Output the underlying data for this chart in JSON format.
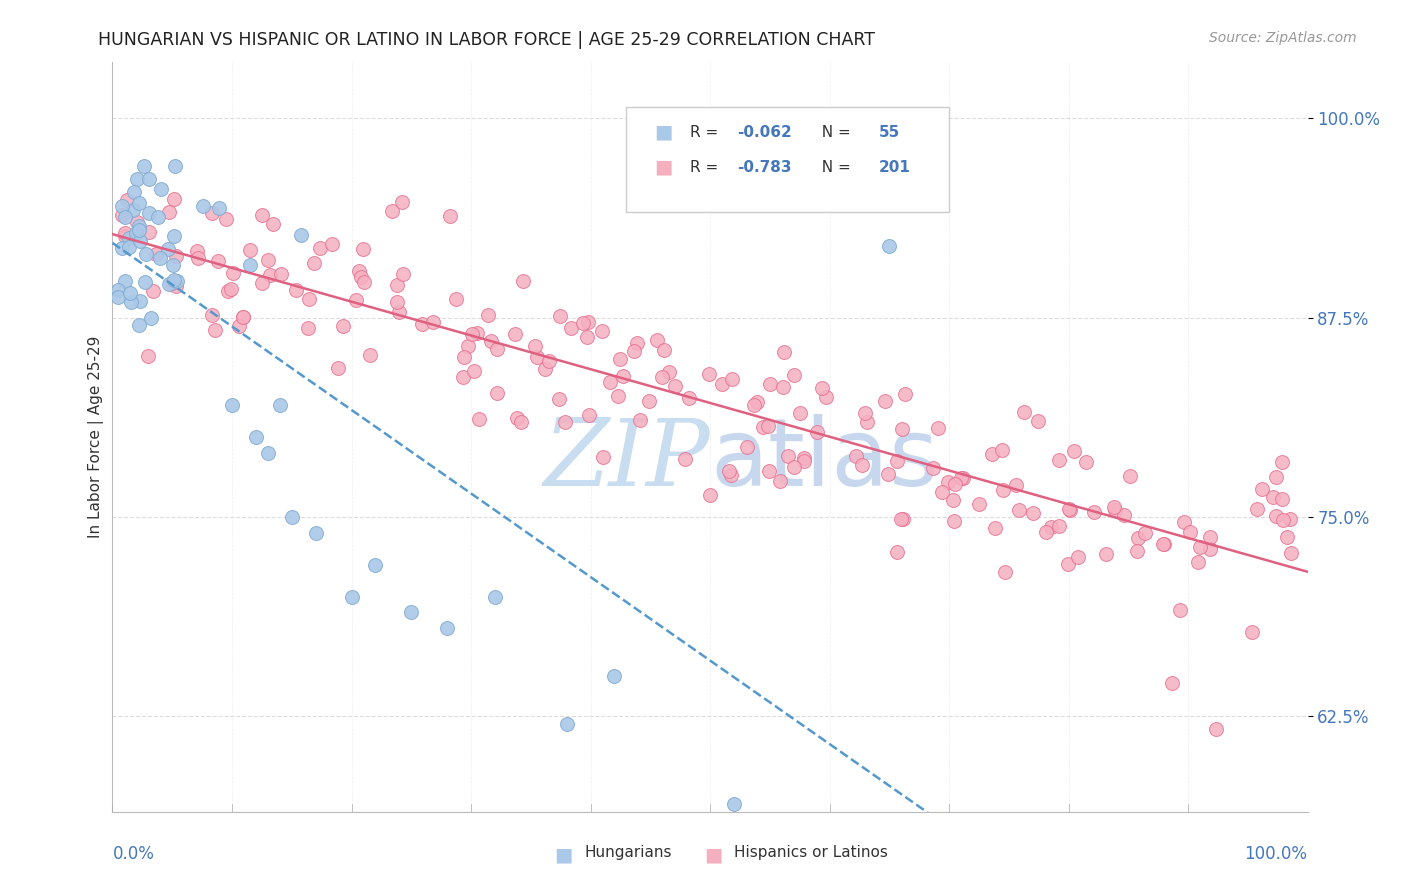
{
  "title": "HUNGARIAN VS HISPANIC OR LATINO IN LABOR FORCE | AGE 25-29 CORRELATION CHART",
  "source": "Source: ZipAtlas.com",
  "ylabel": "In Labor Force | Age 25-29",
  "yticks": [
    "62.5%",
    "75.0%",
    "87.5%",
    "100.0%"
  ],
  "ytick_vals": [
    0.625,
    0.75,
    0.875,
    1.0
  ],
  "xlim": [
    0.0,
    1.0
  ],
  "ylim": [
    0.565,
    1.035
  ],
  "legend_r1": "-0.062",
  "legend_n1": "55",
  "legend_r2": "-0.783",
  "legend_n2": "201",
  "hungarian_color": "#aac8e8",
  "hungarian_edge": "#80aad0",
  "hispanic_color": "#f5b0c0",
  "hispanic_edge": "#e87090",
  "trendline_hung_color": "#5599cc",
  "trendline_hisp_color": "#e06080",
  "text_blue": "#4477bb",
  "watermark_color": "#c8ddf0",
  "background_color": "#ffffff",
  "grid_color": "#dddddd",
  "title_color": "#222222",
  "source_color": "#999999",
  "label_color": "#333333",
  "tick_color": "#4477bb"
}
